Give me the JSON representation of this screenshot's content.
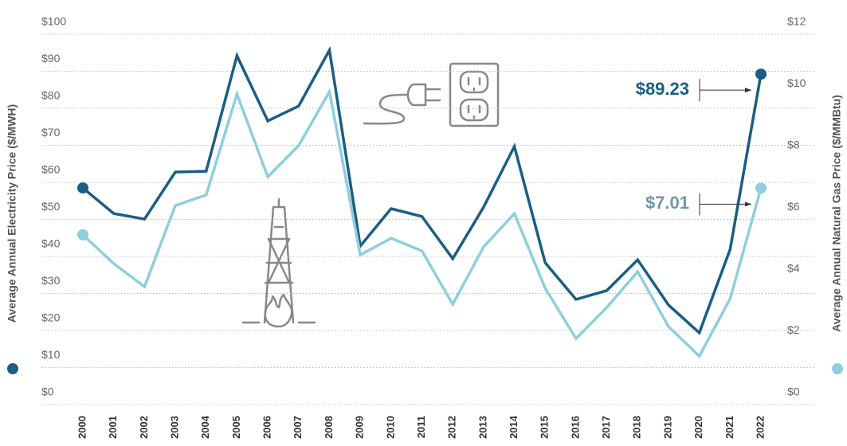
{
  "chart_data": {
    "type": "line",
    "y_label": "Average Annual Electricity Price ($/MWH)",
    "y2_label": "Average Annual Natural Gas Price ($/MMBtu)",
    "categories": [
      "2000",
      "2001",
      "2002",
      "2003",
      "2004",
      "2005",
      "2006",
      "2007",
      "2008",
      "2009",
      "2010",
      "2011",
      "2012",
      "2013",
      "2014",
      "2015",
      "2016",
      "2017",
      "2018",
      "2019",
      "2020",
      "2021",
      "2022"
    ],
    "series": [
      {
        "name": "Electricity",
        "color": "#1b5e82",
        "values": [
          58.5,
          51.6,
          50.1,
          62.8,
          63.0,
          94.2,
          76.6,
          80.6,
          95.7,
          42.8,
          52.9,
          50.8,
          39.4,
          53.3,
          69.7,
          38.3,
          28.4,
          30.8,
          39.1,
          26.9,
          19.4,
          41.9,
          89.23
        ]
      },
      {
        "name": "Natural Gas",
        "color": "#8ecfdc",
        "axis": "y2",
        "values": [
          5.5,
          4.57,
          3.82,
          6.45,
          6.79,
          10.06,
          7.38,
          8.39,
          10.14,
          4.85,
          5.39,
          4.98,
          3.25,
          5.11,
          6.19,
          3.77,
          2.14,
          3.15,
          4.31,
          2.53,
          1.57,
          3.43,
          7.01
        ]
      }
    ],
    "annotations": [
      {
        "text": "$89.23",
        "series": 0
      },
      {
        "text": "$7.01",
        "series": 1
      }
    ],
    "ylim": [
      0,
      100
    ],
    "yticks": [
      {
        "value": 0,
        "label": "$0"
      },
      {
        "value": 10,
        "label": "$10"
      },
      {
        "value": 20,
        "label": "$20"
      },
      {
        "value": 30,
        "label": "$30"
      },
      {
        "value": 40,
        "label": "$40"
      },
      {
        "value": 50,
        "label": "$50"
      },
      {
        "value": 60,
        "label": "$60"
      },
      {
        "value": 70,
        "label": "$70"
      },
      {
        "value": 80,
        "label": "$80"
      },
      {
        "value": 90,
        "label": "$90"
      },
      {
        "value": 100,
        "label": "$100"
      }
    ],
    "y2lim": [
      0,
      12
    ],
    "y2ticks": [
      {
        "value": 0,
        "label": "$0"
      },
      {
        "value": 2,
        "label": "$2"
      },
      {
        "value": 4,
        "label": "$4"
      },
      {
        "value": 6,
        "label": "$6"
      },
      {
        "value": 8,
        "label": "$8"
      },
      {
        "value": 10,
        "label": "$10"
      },
      {
        "value": 12,
        "label": "$12"
      }
    ],
    "grid": true
  }
}
